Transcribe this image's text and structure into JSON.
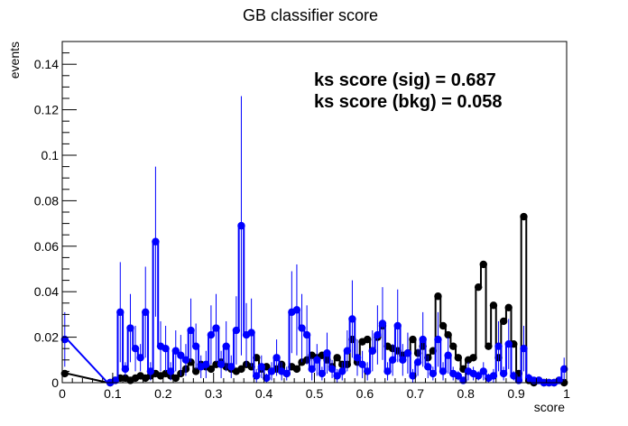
{
  "chart_data": {
    "type": "scatter",
    "title": "GB classifier score",
    "xlabel": "score",
    "ylabel": "events",
    "xlim": [
      0,
      1
    ],
    "ylim": [
      0,
      0.15
    ],
    "xticks": [
      "0",
      "0.1",
      "0.2",
      "0.3",
      "0.4",
      "0.5",
      "0.6",
      "0.7",
      "0.8",
      "0.9",
      "1"
    ],
    "yticks": [
      "0",
      "0.02",
      "0.04",
      "0.06",
      "0.08",
      "0.1",
      "0.12",
      "0.14"
    ],
    "annotations": [
      "ks score (sig) = 0.687",
      "ks score (bkg) = 0.058"
    ],
    "grid": false,
    "series": [
      {
        "color": "#000000",
        "style": "step",
        "x": [
          0.005,
          0.095,
          0.105,
          0.115,
          0.125,
          0.135,
          0.145,
          0.155,
          0.165,
          0.175,
          0.185,
          0.195,
          0.205,
          0.215,
          0.225,
          0.235,
          0.245,
          0.255,
          0.265,
          0.275,
          0.285,
          0.295,
          0.305,
          0.315,
          0.325,
          0.335,
          0.345,
          0.355,
          0.365,
          0.375,
          0.385,
          0.395,
          0.405,
          0.415,
          0.425,
          0.435,
          0.445,
          0.455,
          0.465,
          0.475,
          0.485,
          0.495,
          0.505,
          0.515,
          0.525,
          0.535,
          0.545,
          0.555,
          0.565,
          0.575,
          0.585,
          0.595,
          0.605,
          0.615,
          0.625,
          0.635,
          0.645,
          0.655,
          0.665,
          0.675,
          0.685,
          0.695,
          0.705,
          0.715,
          0.725,
          0.735,
          0.745,
          0.755,
          0.765,
          0.775,
          0.785,
          0.795,
          0.805,
          0.815,
          0.825,
          0.835,
          0.845,
          0.855,
          0.865,
          0.875,
          0.885,
          0.895,
          0.905,
          0.915,
          0.925,
          0.935,
          0.945,
          0.955,
          0.965,
          0.975,
          0.985,
          0.995
        ],
        "values": [
          0.004,
          0.0,
          0.001,
          0.002,
          0.002,
          0.001,
          0.002,
          0.003,
          0.002,
          0.003,
          0.004,
          0.003,
          0.004,
          0.003,
          0.002,
          0.004,
          0.006,
          0.009,
          0.005,
          0.008,
          0.007,
          0.006,
          0.008,
          0.009,
          0.007,
          0.006,
          0.005,
          0.006,
          0.008,
          0.007,
          0.011,
          0.006,
          0.007,
          0.005,
          0.006,
          0.008,
          0.004,
          0.007,
          0.006,
          0.009,
          0.01,
          0.012,
          0.011,
          0.012,
          0.01,
          0.007,
          0.011,
          0.008,
          0.008,
          0.019,
          0.009,
          0.018,
          0.019,
          0.014,
          0.02,
          0.025,
          0.016,
          0.015,
          0.014,
          0.012,
          0.013,
          0.019,
          0.013,
          0.016,
          0.011,
          0.014,
          0.038,
          0.025,
          0.021,
          0.016,
          0.011,
          0.006,
          0.01,
          0.011,
          0.042,
          0.052,
          0.016,
          0.034,
          0.011,
          0.027,
          0.033,
          0.017,
          0.004,
          0.073,
          0.001,
          0.0,
          0.001,
          0.0,
          0.0,
          0.0,
          0.001,
          0.0
        ]
      },
      {
        "color": "#0000ff",
        "style": "step",
        "x": [
          0.005,
          0.095,
          0.105,
          0.115,
          0.125,
          0.135,
          0.145,
          0.155,
          0.165,
          0.175,
          0.185,
          0.195,
          0.205,
          0.215,
          0.225,
          0.235,
          0.245,
          0.255,
          0.265,
          0.275,
          0.285,
          0.295,
          0.305,
          0.315,
          0.325,
          0.335,
          0.345,
          0.355,
          0.365,
          0.375,
          0.385,
          0.395,
          0.405,
          0.415,
          0.425,
          0.435,
          0.445,
          0.455,
          0.465,
          0.475,
          0.485,
          0.495,
          0.505,
          0.515,
          0.525,
          0.535,
          0.545,
          0.555,
          0.565,
          0.575,
          0.585,
          0.595,
          0.605,
          0.615,
          0.625,
          0.635,
          0.645,
          0.655,
          0.665,
          0.675,
          0.685,
          0.695,
          0.705,
          0.715,
          0.725,
          0.735,
          0.745,
          0.755,
          0.765,
          0.775,
          0.785,
          0.795,
          0.805,
          0.815,
          0.825,
          0.835,
          0.845,
          0.855,
          0.865,
          0.875,
          0.885,
          0.895,
          0.905,
          0.915,
          0.925,
          0.935,
          0.945,
          0.955,
          0.965,
          0.975,
          0.985,
          0.995
        ],
        "values": [
          0.019,
          0.0,
          0.001,
          0.031,
          0.006,
          0.024,
          0.015,
          0.011,
          0.031,
          0.005,
          0.062,
          0.016,
          0.015,
          0.005,
          0.014,
          0.012,
          0.01,
          0.023,
          0.016,
          0.007,
          0.008,
          0.021,
          0.024,
          0.008,
          0.016,
          0.007,
          0.023,
          0.069,
          0.021,
          0.022,
          0.003,
          0.007,
          0.002,
          0.005,
          0.011,
          0.005,
          0.004,
          0.031,
          0.032,
          0.024,
          0.021,
          0.006,
          0.01,
          0.004,
          0.013,
          0.006,
          0.003,
          0.005,
          0.014,
          0.028,
          0.011,
          0.008,
          0.005,
          0.014,
          0.021,
          0.026,
          0.005,
          0.01,
          0.025,
          0.01,
          0.013,
          0.003,
          0.009,
          0.019,
          0.007,
          0.004,
          0.019,
          0.005,
          0.012,
          0.004,
          0.003,
          0.001,
          0.005,
          0.004,
          0.003,
          0.005,
          0.002,
          0.003,
          0.016,
          0.004,
          0.017,
          0.003,
          0.001,
          0.015,
          0.002,
          0.001,
          0.001,
          0.0,
          0.0,
          0.0,
          0.001,
          0.006
        ],
        "errors": [
          0.012,
          0.0,
          0.001,
          0.022,
          0.003,
          0.015,
          0.01,
          0.006,
          0.02,
          0.004,
          0.033,
          0.011,
          0.01,
          0.004,
          0.009,
          0.009,
          0.007,
          0.014,
          0.01,
          0.005,
          0.006,
          0.013,
          0.015,
          0.006,
          0.011,
          0.005,
          0.015,
          0.057,
          0.014,
          0.015,
          0.003,
          0.005,
          0.002,
          0.004,
          0.008,
          0.004,
          0.003,
          0.018,
          0.02,
          0.015,
          0.013,
          0.005,
          0.007,
          0.003,
          0.009,
          0.004,
          0.003,
          0.004,
          0.009,
          0.017,
          0.008,
          0.006,
          0.004,
          0.009,
          0.013,
          0.016,
          0.004,
          0.007,
          0.016,
          0.007,
          0.009,
          0.003,
          0.006,
          0.012,
          0.005,
          0.003,
          0.012,
          0.004,
          0.008,
          0.003,
          0.002,
          0.001,
          0.004,
          0.003,
          0.002,
          0.004,
          0.002,
          0.003,
          0.011,
          0.003,
          0.011,
          0.002,
          0.001,
          0.01,
          0.002,
          0.001,
          0.001,
          0.0,
          0.0,
          0.0,
          0.001,
          0.005
        ]
      }
    ]
  }
}
